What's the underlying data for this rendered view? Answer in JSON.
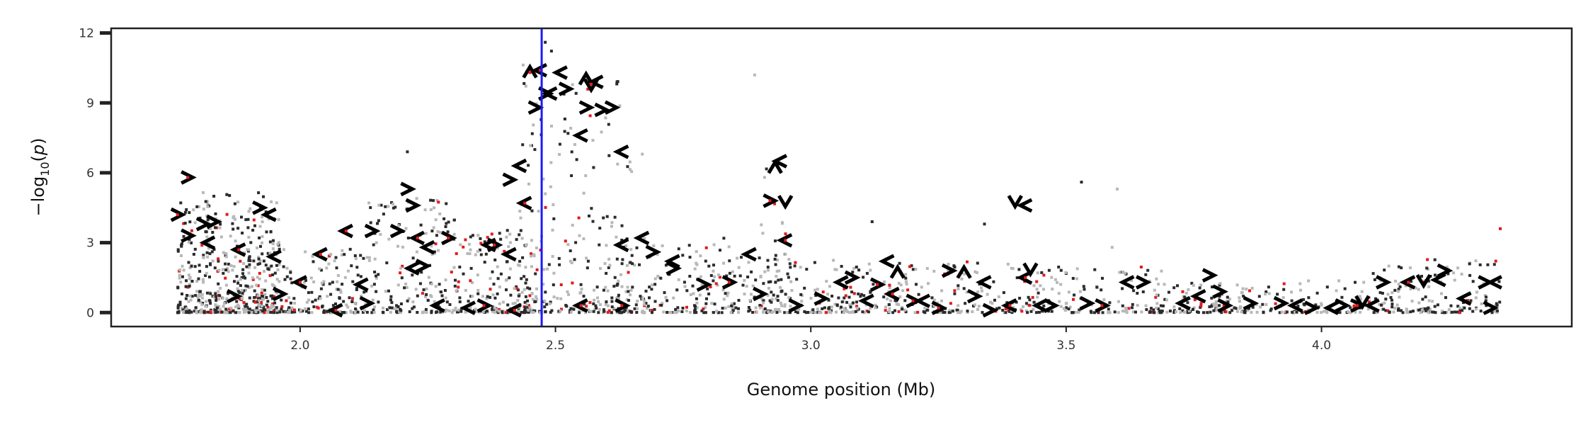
{
  "chart_data": {
    "type": "scatter",
    "title": "",
    "xlabel": "Genome position (Mb)",
    "ylabel_parts": {
      "prefix": "−log",
      "sub": "10",
      "open": "(",
      "var": "p",
      "close": ")"
    },
    "xlim": [
      1.63,
      4.49
    ],
    "ylim": [
      -0.6,
      12.2
    ],
    "x_ticks": [
      2.0,
      2.5,
      3.0,
      3.5,
      4.0
    ],
    "x_tick_labels": [
      "2.0",
      "2.5",
      "3.0",
      "3.5",
      "4.0"
    ],
    "y_ticks": [
      0,
      3,
      6,
      9,
      12
    ],
    "y_tick_labels": [
      "0",
      "3",
      "6",
      "9",
      "12"
    ],
    "grid": false,
    "vline": {
      "x": 2.473,
      "color": "#1a1aff"
    },
    "colors": {
      "dark": "#2b2b2b",
      "light": "#b8b8b8",
      "red": "#e31a1c",
      "marker": "#000000"
    },
    "marker_series": [
      {
        "name": "left",
        "glyph": "<",
        "points": [
          [
            2.04,
            2.5
          ],
          [
            2.07,
            0.1
          ],
          [
            2.09,
            3.5
          ],
          [
            2.12,
            1.2
          ],
          [
            2.22,
            1.9
          ],
          [
            2.23,
            3.2
          ],
          [
            2.25,
            2.8
          ],
          [
            2.27,
            0.3
          ],
          [
            2.33,
            0.2
          ],
          [
            2.42,
            0.1
          ],
          [
            2.43,
            6.3
          ],
          [
            2.44,
            4.7
          ],
          [
            2.47,
            10.4
          ],
          [
            2.49,
            9.4
          ],
          [
            2.51,
            10.3
          ],
          [
            2.55,
            0.3
          ],
          [
            2.55,
            7.6
          ],
          [
            2.58,
            9.9
          ],
          [
            2.63,
            6.9
          ],
          [
            2.67,
            3.2
          ],
          [
            2.73,
            2.2
          ],
          [
            2.88,
            2.5
          ],
          [
            2.94,
            6.5
          ],
          [
            2.95,
            3.1
          ],
          [
            3.22,
            0.5
          ],
          [
            3.42,
            4.6
          ],
          [
            3.42,
            1.5
          ],
          [
            3.45,
            0.3
          ],
          [
            3.73,
            0.4
          ],
          [
            3.76,
            0.7
          ],
          [
            4.1,
            0.3
          ],
          [
            4.17,
            1.3
          ],
          [
            4.23,
            1.4
          ],
          [
            4.28,
            0.6
          ],
          [
            4.34,
            1.3
          ],
          [
            1.82,
            3.0
          ],
          [
            1.88,
            2.7
          ],
          [
            1.94,
            4.2
          ],
          [
            2.0,
            1.3
          ],
          [
            2.37,
            2.9
          ],
          [
            2.41,
            2.5
          ],
          [
            3.06,
            1.3
          ],
          [
            3.11,
            0.5
          ],
          [
            3.16,
            0.8
          ],
          [
            3.34,
            1.3
          ],
          [
            3.39,
            0.3
          ],
          [
            3.62,
            1.3
          ],
          [
            3.95,
            0.3
          ],
          [
            4.02,
            0.2
          ],
          [
            1.95,
            2.4
          ],
          [
            2.63,
            2.9
          ],
          [
            3.15,
            2.2
          ]
        ]
      },
      {
        "name": "right",
        "glyph": ">",
        "points": [
          [
            1.76,
            4.2
          ],
          [
            1.78,
            5.8
          ],
          [
            1.78,
            3.3
          ],
          [
            1.81,
            3.8
          ],
          [
            1.92,
            4.5
          ],
          [
            1.96,
            0.8
          ],
          [
            2.19,
            3.5
          ],
          [
            2.21,
            5.3
          ],
          [
            2.22,
            4.6
          ],
          [
            2.24,
            2.0
          ],
          [
            2.29,
            3.2
          ],
          [
            2.38,
            2.9
          ],
          [
            2.41,
            5.7
          ],
          [
            2.46,
            8.8
          ],
          [
            2.48,
            9.4
          ],
          [
            2.52,
            9.6
          ],
          [
            2.56,
            8.8
          ],
          [
            2.59,
            8.7
          ],
          [
            2.61,
            8.8
          ],
          [
            2.73,
            1.9
          ],
          [
            2.79,
            1.2
          ],
          [
            2.84,
            1.3
          ],
          [
            2.9,
            0.8
          ],
          [
            2.92,
            4.8
          ],
          [
            3.02,
            0.6
          ],
          [
            3.08,
            1.5
          ],
          [
            3.13,
            1.2
          ],
          [
            3.2,
            0.5
          ],
          [
            3.27,
            1.8
          ],
          [
            3.32,
            0.7
          ],
          [
            3.35,
            0.1
          ],
          [
            3.47,
            0.3
          ],
          [
            3.54,
            0.4
          ],
          [
            3.65,
            1.3
          ],
          [
            3.78,
            1.6
          ],
          [
            3.8,
            0.9
          ],
          [
            3.81,
            0.3
          ],
          [
            3.86,
            0.4
          ],
          [
            3.92,
            0.4
          ],
          [
            3.98,
            0.2
          ],
          [
            4.07,
            0.3
          ],
          [
            4.12,
            1.3
          ],
          [
            4.24,
            1.8
          ],
          [
            4.32,
            1.3
          ],
          [
            4.33,
            0.2
          ],
          [
            1.87,
            0.7
          ],
          [
            2.13,
            0.4
          ],
          [
            2.36,
            0.3
          ],
          [
            2.63,
            0.3
          ],
          [
            2.69,
            2.6
          ],
          [
            2.97,
            0.3
          ],
          [
            3.25,
            0.2
          ],
          [
            3.57,
            0.3
          ],
          [
            4.04,
            0.3
          ],
          [
            1.83,
            3.9
          ],
          [
            2.14,
            3.5
          ]
        ]
      },
      {
        "name": "up",
        "glyph": "^",
        "points": [
          [
            2.45,
            10.3
          ],
          [
            2.56,
            10.0
          ],
          [
            2.93,
            6.2
          ],
          [
            3.17,
            1.7
          ],
          [
            3.3,
            1.7
          ]
        ]
      },
      {
        "name": "down",
        "glyph": "v",
        "points": [
          [
            2.57,
            9.8
          ],
          [
            2.95,
            4.8
          ],
          [
            3.4,
            4.8
          ],
          [
            3.43,
            1.9
          ],
          [
            4.08,
            0.5
          ],
          [
            4.2,
            1.4
          ]
        ]
      }
    ],
    "cloud_clusters": [
      {
        "x0": 1.76,
        "x1": 1.96,
        "ymax": 5.2,
        "n": 520
      },
      {
        "x0": 1.96,
        "x1": 2.13,
        "ymax": 2.8,
        "n": 160
      },
      {
        "x0": 2.13,
        "x1": 2.31,
        "ymax": 5.0,
        "n": 200
      },
      {
        "x0": 2.31,
        "x1": 2.46,
        "ymax": 3.6,
        "n": 170
      },
      {
        "x0": 2.43,
        "x1": 2.5,
        "ymax": 11.3,
        "n": 90
      },
      {
        "x0": 2.5,
        "x1": 2.65,
        "ymax": 10.0,
        "n": 160
      },
      {
        "x0": 2.62,
        "x1": 2.84,
        "ymax": 3.3,
        "n": 180
      },
      {
        "x0": 2.84,
        "x1": 3.05,
        "ymax": 2.5,
        "n": 150
      },
      {
        "x0": 2.9,
        "x1": 2.96,
        "ymax": 6.8,
        "n": 40
      },
      {
        "x0": 3.05,
        "x1": 3.45,
        "ymax": 2.2,
        "n": 260
      },
      {
        "x0": 3.45,
        "x1": 3.7,
        "ymax": 2.0,
        "n": 130
      },
      {
        "x0": 3.7,
        "x1": 4.1,
        "ymax": 1.4,
        "n": 200
      },
      {
        "x0": 4.1,
        "x1": 4.35,
        "ymax": 2.4,
        "n": 170
      }
    ],
    "isolated_points": [
      [
        2.89,
        10.2
      ],
      [
        2.48,
        11.6
      ],
      [
        3.53,
        5.6
      ],
      [
        3.6,
        5.3
      ],
      [
        3.12,
        3.9
      ],
      [
        3.34,
        3.8
      ],
      [
        3.59,
        2.8
      ],
      [
        4.35,
        3.6
      ],
      [
        2.21,
        6.9
      ],
      [
        2.06,
        2.5
      ],
      [
        2.43,
        2.2
      ],
      [
        2.55,
        1.2
      ],
      [
        2.67,
        6.8
      ],
      [
        2.13,
        3.3
      ]
    ]
  }
}
